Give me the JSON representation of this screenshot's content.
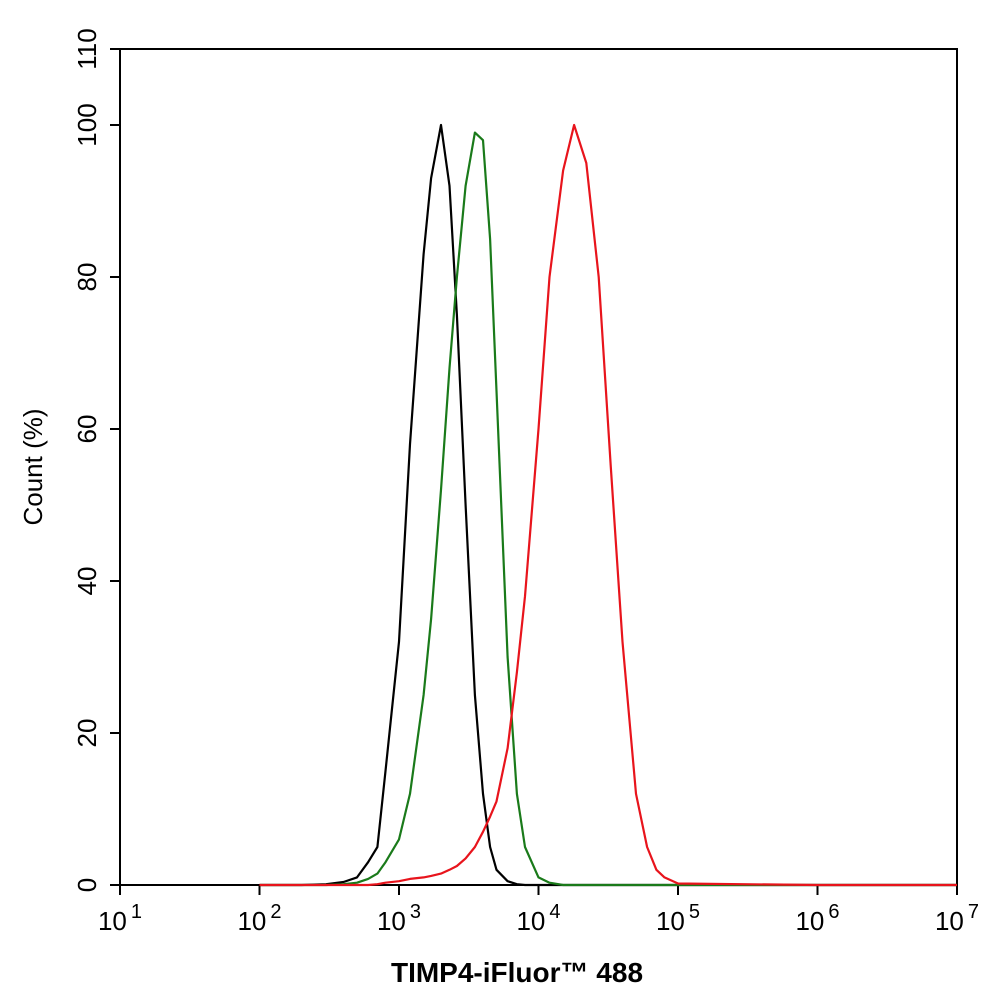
{
  "chart_data": {
    "type": "line",
    "x_label": "TIMP4-iFluor™ 488",
    "y_label": "Count  (%)",
    "x_scale": "log",
    "x": [
      100,
      200,
      300,
      400,
      500,
      600,
      700,
      800,
      1000,
      1200,
      1500,
      1700,
      2000,
      2300,
      2600,
      3000,
      3500,
      4000,
      4500,
      5000,
      6000,
      7000,
      8000,
      10000,
      12000,
      15000,
      18000,
      22000,
      27000,
      33000,
      40000,
      50000,
      60000,
      70000,
      80000,
      100000,
      1000000,
      10000000
    ],
    "series": [
      {
        "color": "#000000",
        "values": [
          0,
          0,
          0.1,
          0.4,
          1,
          3,
          5,
          15,
          32,
          58,
          83,
          93,
          100,
          92,
          75,
          50,
          25,
          12,
          5,
          2,
          0.5,
          0.1,
          0,
          0,
          0,
          0,
          0,
          0,
          0,
          0,
          0,
          0,
          0,
          0,
          0,
          0,
          0,
          0
        ]
      },
      {
        "color": "#1a7a1a",
        "values": [
          0,
          0,
          0,
          0.1,
          0.3,
          0.8,
          1.5,
          3,
          6,
          12,
          25,
          35,
          52,
          68,
          80,
          92,
          99,
          98,
          85,
          65,
          30,
          12,
          5,
          1,
          0.3,
          0,
          0,
          0,
          0,
          0,
          0,
          0,
          0,
          0,
          0,
          0,
          0,
          0
        ]
      },
      {
        "color": "#e8141c",
        "values": [
          0,
          0,
          0,
          0,
          0,
          0,
          0.1,
          0.3,
          0.5,
          0.8,
          1,
          1.2,
          1.5,
          2,
          2.5,
          3.5,
          5,
          7,
          9,
          11,
          18,
          28,
          38,
          60,
          80,
          94,
          100,
          95,
          80,
          55,
          32,
          12,
          5,
          2,
          1,
          0.2,
          0,
          0
        ]
      }
    ],
    "xlim": [
      10,
      10000000
    ],
    "xticks": [
      {
        "value": 10,
        "label": "10",
        "exponent": "1"
      },
      {
        "value": 100,
        "label": "10",
        "exponent": "2"
      },
      {
        "value": 1000,
        "label": "10",
        "exponent": "3"
      },
      {
        "value": 10000,
        "label": "10",
        "exponent": "4"
      },
      {
        "value": 100000,
        "label": "10",
        "exponent": "5"
      },
      {
        "value": 1000000,
        "label": "10",
        "exponent": "6"
      },
      {
        "value": 10000000,
        "label": "10",
        "exponent": "7"
      }
    ],
    "ylim": [
      0,
      110
    ],
    "yticks": [
      0,
      20,
      40,
      60,
      80,
      100,
      110
    ]
  }
}
